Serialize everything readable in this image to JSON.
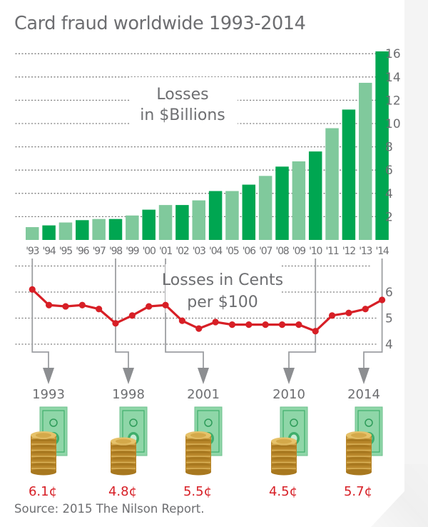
{
  "title": "Card fraud worldwide 1993-2014",
  "source": "Source: 2015 The Nilson Report.",
  "colors": {
    "bar_dark": "#00a651",
    "bar_light": "#80c99c",
    "line": "#d71f26",
    "text": "#6d6e71",
    "grid": "#7a7a7a",
    "connector": "#9d9fa2"
  },
  "chart_data": [
    {
      "type": "bar",
      "title": "Losses in $Billions",
      "annotation_lines": [
        "Losses",
        "in $Billions"
      ],
      "categories": [
        "'93",
        "'94",
        "'95",
        "'96",
        "'97",
        "'98",
        "'99",
        "'00",
        "'01",
        "'02",
        "'03",
        "'04",
        "'05",
        "'06",
        "'07",
        "'08",
        "'09",
        "'10",
        "'11",
        "'12",
        "'13",
        "'14"
      ],
      "values": [
        1.1,
        1.25,
        1.5,
        1.7,
        1.8,
        1.8,
        2.1,
        2.6,
        3.0,
        3.0,
        3.4,
        4.2,
        4.2,
        4.75,
        5.5,
        6.3,
        6.75,
        7.6,
        9.6,
        11.2,
        13.5,
        16.2
      ],
      "shade": [
        "light",
        "dark",
        "light",
        "dark",
        "light",
        "dark",
        "light",
        "dark",
        "light",
        "dark",
        "light",
        "dark",
        "light",
        "dark",
        "light",
        "dark",
        "light",
        "dark",
        "light",
        "dark",
        "light",
        "dark"
      ],
      "yticks": [
        2,
        4,
        6,
        8,
        10,
        12,
        14,
        16
      ],
      "ylim": [
        0,
        16.5
      ],
      "grid": true,
      "axis_position": "right"
    },
    {
      "type": "line",
      "title": "Losses in Cents per $100",
      "annotation_lines": [
        "Losses in Cents",
        "per $100"
      ],
      "x": [
        1993,
        1994,
        1995,
        1996,
        1997,
        1998,
        1999,
        2000,
        2001,
        2002,
        2003,
        2004,
        2005,
        2006,
        2007,
        2008,
        2009,
        2010,
        2011,
        2012,
        2013,
        2014
      ],
      "values": [
        6.1,
        5.5,
        5.45,
        5.5,
        5.35,
        4.8,
        5.1,
        5.45,
        5.5,
        4.9,
        4.6,
        4.85,
        4.75,
        4.75,
        4.75,
        4.75,
        4.75,
        4.5,
        5.1,
        5.2,
        5.35,
        5.7
      ],
      "yticks": [
        4,
        5,
        6
      ],
      "grid_values": [
        4,
        5,
        6,
        7
      ],
      "ylim": [
        3.8,
        7.1
      ],
      "grid": true,
      "axis_position": "right"
    }
  ],
  "callouts": [
    {
      "year": "1993",
      "value": "6.1¢",
      "index": 0,
      "coins": 6
    },
    {
      "year": "1998",
      "value": "4.8¢",
      "index": 5,
      "coins": 5
    },
    {
      "year": "2001",
      "value": "5.5¢",
      "index": 8,
      "coins": 6
    },
    {
      "year": "2010",
      "value": "4.5¢",
      "index": 17,
      "coins": 5
    },
    {
      "year": "2014",
      "value": "5.7¢",
      "index": 21,
      "coins": 6
    }
  ],
  "icons": {
    "bill": "dollar-bill-icon",
    "coins": "coin-stack-icon",
    "arrow": "arrow-down-icon"
  }
}
